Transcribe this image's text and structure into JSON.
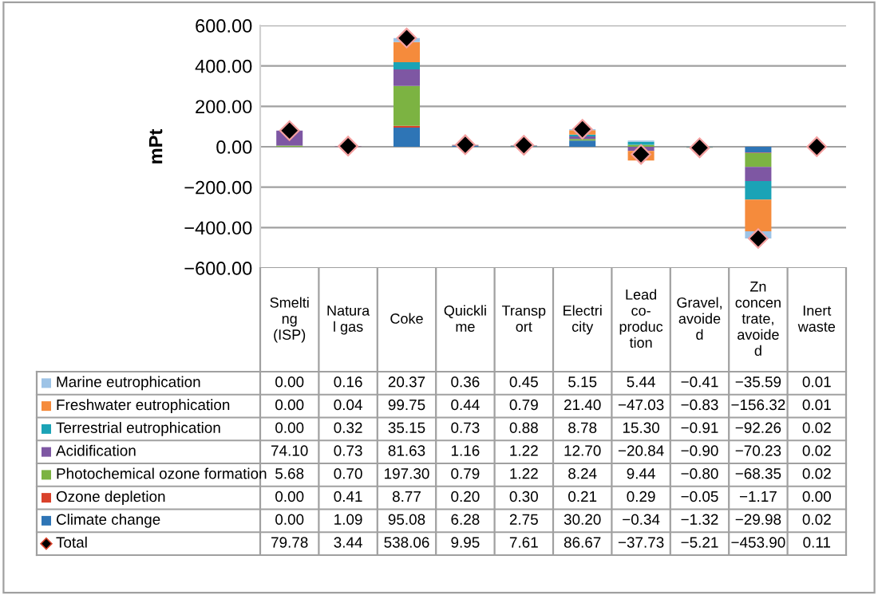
{
  "chart_data": {
    "type": "bar",
    "stacked": true,
    "ylabel": "mPt",
    "categories": [
      "Smelti\nng\n(ISP)",
      "Natura\nl gas",
      "Coke",
      "Quickli\nme",
      "Transp\nort",
      "Electri\ncity",
      "Lead\nco-\nproduc\ntion",
      "Gravel,\navoide\nd",
      "Zn\nconcen\ntrate,\navoide\nd",
      "Inert\nwaste"
    ],
    "series": [
      {
        "name": "Climate change",
        "color": "#2e75b6",
        "values": [
          0.0,
          1.09,
          95.08,
          6.28,
          2.75,
          30.2,
          -0.34,
          -1.32,
          -29.98,
          0.02
        ],
        "value_labels": [
          "0.00",
          "1.09",
          "95.08",
          "6.28",
          "2.75",
          "30.20",
          "−0.34",
          "−1.32",
          "−29.98",
          "0.02"
        ]
      },
      {
        "name": "Ozone depletion",
        "color": "#d9412b",
        "values": [
          0.0,
          0.41,
          8.77,
          0.2,
          0.3,
          0.21,
          0.29,
          -0.05,
          -1.17,
          0.0
        ],
        "value_labels": [
          "0.00",
          "0.41",
          "8.77",
          "0.20",
          "0.30",
          "0.21",
          "0.29",
          "−0.05",
          "−1.17",
          "0.00"
        ]
      },
      {
        "name": "Photochemical ozone formation",
        "color": "#7cb342",
        "values": [
          5.68,
          0.7,
          197.3,
          0.79,
          1.22,
          8.24,
          9.44,
          -0.8,
          -68.35,
          0.02
        ],
        "value_labels": [
          "5.68",
          "0.70",
          "197.30",
          "0.79",
          "1.22",
          "8.24",
          "9.44",
          "−0.80",
          "−68.35",
          "0.02"
        ]
      },
      {
        "name": "Acidification",
        "color": "#7e57a3",
        "values": [
          74.1,
          0.73,
          81.63,
          1.16,
          1.22,
          12.7,
          -20.84,
          -0.9,
          -70.23,
          0.02
        ],
        "value_labels": [
          "74.10",
          "0.73",
          "81.63",
          "1.16",
          "1.22",
          "12.70",
          "−20.84",
          "−0.90",
          "−70.23",
          "0.02"
        ]
      },
      {
        "name": "Terrestrial eutrophication",
        "color": "#1ba3b6",
        "values": [
          0.0,
          0.32,
          35.15,
          0.73,
          0.88,
          8.78,
          15.3,
          -0.91,
          -92.26,
          0.02
        ],
        "value_labels": [
          "0.00",
          "0.32",
          "35.15",
          "0.73",
          "0.88",
          "8.78",
          "15.30",
          "−0.91",
          "−92.26",
          "0.02"
        ]
      },
      {
        "name": "Freshwater eutrophication",
        "color": "#f58b3c",
        "values": [
          0.0,
          0.04,
          99.75,
          0.44,
          0.79,
          21.4,
          -47.03,
          -0.83,
          -156.32,
          0.01
        ],
        "value_labels": [
          "0.00",
          "0.04",
          "99.75",
          "0.44",
          "0.79",
          "21.40",
          "−47.03",
          "−0.83",
          "−156.32",
          "0.01"
        ]
      },
      {
        "name": "Marine eutrophication",
        "color": "#9dc3e6",
        "values": [
          0.0,
          0.16,
          20.37,
          0.36,
          0.45,
          5.15,
          5.44,
          -0.41,
          -35.59,
          0.01
        ],
        "value_labels": [
          "0.00",
          "0.16",
          "20.37",
          "0.36",
          "0.45",
          "5.15",
          "5.44",
          "−0.41",
          "−35.59",
          "0.01"
        ]
      },
      {
        "name": "Total",
        "type": "scatter",
        "marker": "diamond",
        "color": "#000000",
        "values": [
          79.78,
          3.44,
          538.06,
          9.95,
          7.61,
          86.67,
          -37.73,
          -5.21,
          -453.9,
          0.11
        ],
        "value_labels": [
          "79.78",
          "3.44",
          "538.06",
          "9.95",
          "7.61",
          "86.67",
          "−37.73",
          "−5.21",
          "−453.90",
          "0.11"
        ]
      }
    ],
    "ylim": [
      -600,
      600
    ],
    "yticks": [
      {
        "value": -600,
        "label": "−600.00"
      },
      {
        "value": -400,
        "label": "−400.00"
      },
      {
        "value": -200,
        "label": "−200.00"
      },
      {
        "value": 0,
        "label": "0.00"
      },
      {
        "value": 200,
        "label": "200.00"
      },
      {
        "value": 400,
        "label": "400.00"
      },
      {
        "value": 600,
        "label": "600.00"
      }
    ],
    "grid": "y",
    "legend": "bottom",
    "tick_labels": "y"
  }
}
